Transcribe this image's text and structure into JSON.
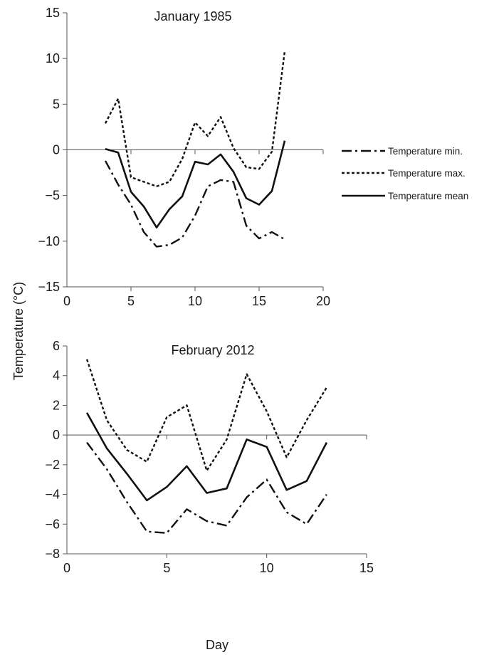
{
  "figure": {
    "ylabel": "Temperature (°C)",
    "xlabel": "Day"
  },
  "legend": {
    "placement": "right",
    "items": [
      {
        "label": "Temperature min.",
        "style": "dash-dot"
      },
      {
        "label": "Temperature max.",
        "style": "dotted"
      },
      {
        "label": "Temperature mean",
        "style": "solid"
      }
    ]
  },
  "chart_data": [
    {
      "type": "line",
      "title": "January 1985",
      "xlim": [
        0,
        20
      ],
      "ylim": [
        -15,
        15
      ],
      "x_ticks": [
        0,
        5,
        10,
        15,
        20
      ],
      "y_ticks": [
        -15,
        -10,
        -5,
        0,
        5,
        10,
        15
      ],
      "grid": false,
      "series": [
        {
          "name": "Temperature min.",
          "style": "dash-dot",
          "x": [
            3,
            4,
            5,
            6,
            7,
            8,
            9,
            10,
            11,
            12,
            13,
            14,
            15,
            16,
            17
          ],
          "values": [
            -1.2,
            -3.8,
            -6.0,
            -9.0,
            -10.6,
            -10.4,
            -9.6,
            -7.2,
            -4.0,
            -3.3,
            -3.5,
            -8.3,
            -9.7,
            -9.0,
            -9.8
          ]
        },
        {
          "name": "Temperature max.",
          "style": "dotted",
          "x": [
            3,
            4,
            5,
            6,
            7,
            8,
            9,
            10,
            11,
            12,
            13,
            14,
            15,
            16,
            17
          ],
          "values": [
            2.9,
            5.6,
            -3.0,
            -3.5,
            -4.0,
            -3.5,
            -1.0,
            3.0,
            1.5,
            3.6,
            0.2,
            -1.9,
            -2.1,
            -0.2,
            10.8
          ]
        },
        {
          "name": "Temperature mean",
          "style": "solid",
          "x": [
            3,
            4,
            5,
            6,
            7,
            8,
            9,
            10,
            11,
            12,
            13,
            14,
            15,
            16,
            17
          ],
          "values": [
            0.1,
            -0.3,
            -4.6,
            -6.2,
            -8.5,
            -6.5,
            -5.1,
            -1.3,
            -1.6,
            -0.5,
            -2.4,
            -5.3,
            -6.0,
            -4.5,
            1.0
          ]
        }
      ]
    },
    {
      "type": "line",
      "title": "February 2012",
      "xlim": [
        0,
        15
      ],
      "ylim": [
        -8,
        6
      ],
      "x_ticks": [
        0,
        5,
        10,
        15
      ],
      "y_ticks": [
        -8,
        -6,
        -4,
        -2,
        0,
        2,
        4,
        6
      ],
      "grid": false,
      "series": [
        {
          "name": "Temperature min.",
          "style": "dash-dot",
          "x": [
            1,
            2,
            3,
            4,
            5,
            6,
            7,
            8,
            9,
            10,
            11,
            12,
            13
          ],
          "values": [
            -0.5,
            -2.3,
            -4.5,
            -6.5,
            -6.6,
            -5.0,
            -5.8,
            -6.1,
            -4.2,
            -3.0,
            -5.2,
            -6.0,
            -4.0
          ]
        },
        {
          "name": "Temperature max.",
          "style": "dotted",
          "x": [
            1,
            2,
            3,
            4,
            5,
            6,
            7,
            8,
            9,
            10,
            11,
            12,
            13
          ],
          "values": [
            5.1,
            1.0,
            -1.0,
            -1.8,
            1.2,
            2.0,
            -2.4,
            -0.3,
            4.1,
            1.6,
            -1.5,
            1.0,
            3.2
          ]
        },
        {
          "name": "Temperature mean",
          "style": "solid",
          "x": [
            1,
            2,
            3,
            4,
            5,
            6,
            7,
            8,
            9,
            10,
            11,
            12,
            13
          ],
          "values": [
            1.5,
            -0.9,
            -2.6,
            -4.4,
            -3.5,
            -2.1,
            -3.9,
            -3.6,
            -0.3,
            -0.8,
            -3.7,
            -3.1,
            -0.5
          ]
        }
      ]
    }
  ]
}
